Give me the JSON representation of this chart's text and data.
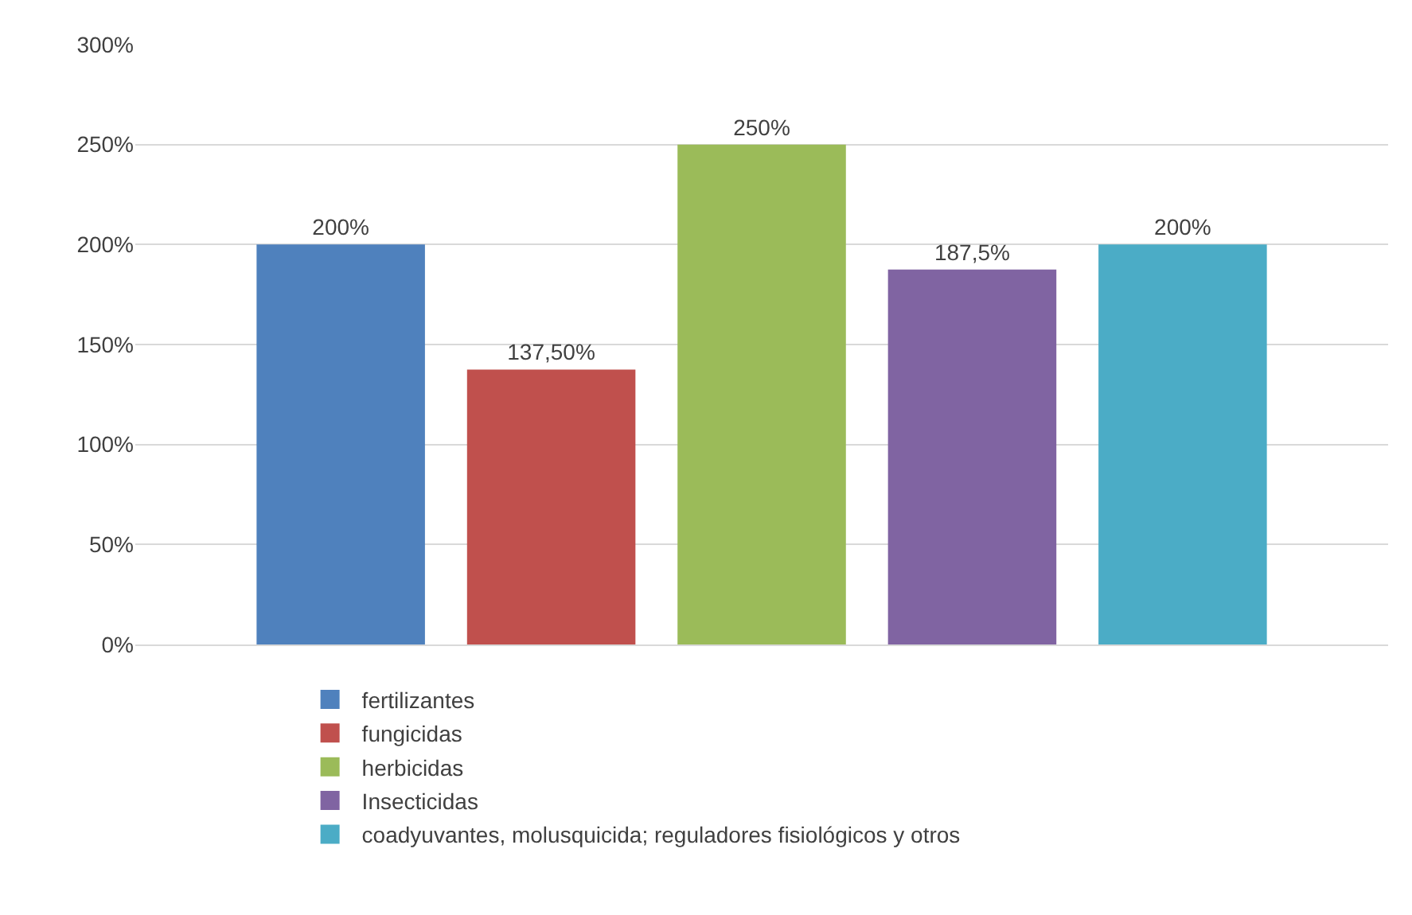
{
  "chart_data": {
    "type": "bar",
    "categories": [
      null
    ],
    "series": [
      {
        "name": "fertilizantes",
        "color": "#4f81bd",
        "values": [
          200
        ],
        "value_labels": [
          "200%"
        ]
      },
      {
        "name": "fungicidas",
        "color": "#c0504d",
        "values": [
          137.5
        ],
        "value_labels": [
          "137,50%"
        ]
      },
      {
        "name": "herbicidas",
        "color": "#9bbb59",
        "values": [
          250
        ],
        "value_labels": [
          "250%"
        ]
      },
      {
        "name": "Insecticidas",
        "color": "#8064a2",
        "values": [
          187.5
        ],
        "value_labels": [
          "187,5%"
        ]
      },
      {
        "name": "coadyuvantes, molusquicida; reguladores fisiológicos y otros",
        "color": "#4bacc6",
        "values": [
          200
        ],
        "value_labels": [
          "200%"
        ]
      }
    ],
    "ylim": [
      0,
      300
    ],
    "yticks": [
      {
        "value": 0,
        "label": "0%"
      },
      {
        "value": 50,
        "label": "50%"
      },
      {
        "value": 100,
        "label": "100%"
      },
      {
        "value": 150,
        "label": "150%"
      },
      {
        "value": 200,
        "label": "200%"
      },
      {
        "value": 250,
        "label": "250%"
      },
      {
        "value": 300,
        "label": "300%"
      }
    ],
    "grid": "y",
    "legend": "bottom"
  }
}
